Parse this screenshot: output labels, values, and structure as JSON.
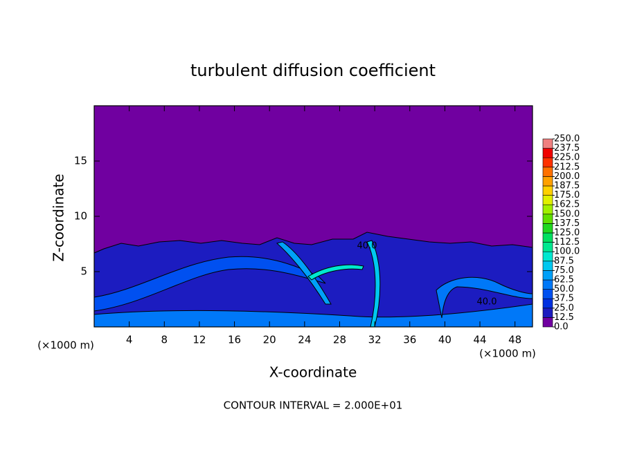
{
  "chart_data": {
    "type": "contour",
    "title": "turbulent diffusion coefficient",
    "x_label": "X-coordinate",
    "y_label": "Z-coordinate",
    "x_unit": "(×1000 m)",
    "y_unit": "(×1000 m)",
    "footnote": "CONTOUR INTERVAL = 2.000E+01",
    "contour_labels": [
      "40.0",
      "40.0"
    ],
    "xlim": [
      0,
      50
    ],
    "xticks": [
      4,
      8,
      12,
      16,
      20,
      24,
      28,
      32,
      36,
      40,
      44,
      48
    ],
    "ylim": [
      0,
      20
    ],
    "yticks": [
      5,
      10,
      15
    ],
    "colorbar": {
      "ticks": [
        {
          "value": 0,
          "label": "0.0"
        },
        {
          "value": 12.5,
          "label": "12.5"
        },
        {
          "value": 25,
          "label": "25.0"
        },
        {
          "value": 37.5,
          "label": "37.5"
        },
        {
          "value": 50,
          "label": "50.0"
        },
        {
          "value": 62.5,
          "label": "62.5"
        },
        {
          "value": 75,
          "label": "75.0"
        },
        {
          "value": 87.5,
          "label": "87.5"
        },
        {
          "value": 100,
          "label": "100.0"
        },
        {
          "value": 112.5,
          "label": "112.5"
        },
        {
          "value": 125,
          "label": "125.0"
        },
        {
          "value": 137.5,
          "label": "137.5"
        },
        {
          "value": 150,
          "label": "150.0"
        },
        {
          "value": 162.5,
          "label": "162.5"
        },
        {
          "value": 175,
          "label": "175.0"
        },
        {
          "value": 187.5,
          "label": "187.5"
        },
        {
          "value": 200,
          "label": "200.0"
        },
        {
          "value": 212.5,
          "label": "212.5"
        },
        {
          "value": 225,
          "label": "225.0"
        },
        {
          "value": 237.5,
          "label": "237.5"
        },
        {
          "value": 250,
          "label": "250.0"
        }
      ],
      "colors": [
        "#7000a0",
        "#1c1cc0",
        "#0030e0",
        "#0050f0",
        "#0078f8",
        "#00a0f8",
        "#00c8f0",
        "#00e8d0",
        "#00e890",
        "#00e060",
        "#20d820",
        "#60e000",
        "#a0f000",
        "#e0f000",
        "#ffd000",
        "#ffa000",
        "#ff7000",
        "#ff3000",
        "#f00000",
        "#f08080"
      ]
    }
  }
}
